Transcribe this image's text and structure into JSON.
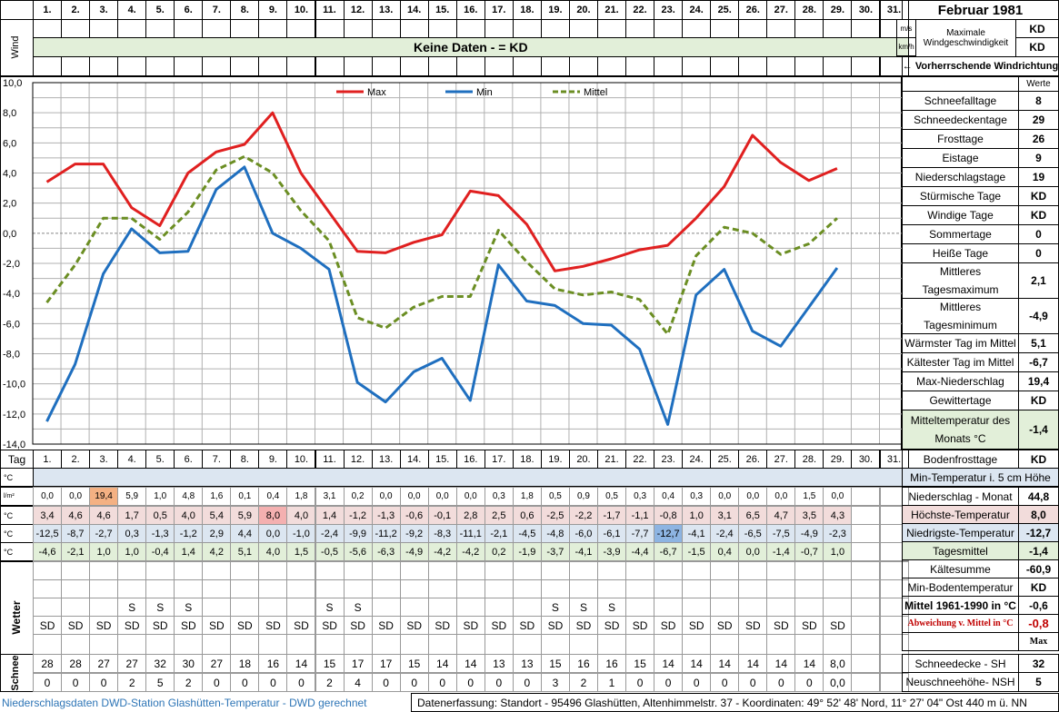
{
  "title": "Februar 1981",
  "days": [
    "1.",
    "2.",
    "3.",
    "4.",
    "5.",
    "6.",
    "7.",
    "8.",
    "9.",
    "10.",
    "11.",
    "12.",
    "13.",
    "14.",
    "15.",
    "16.",
    "17.",
    "18.",
    "19.",
    "20.",
    "21.",
    "22.",
    "23.",
    "24.",
    "25.",
    "26.",
    "27.",
    "28.",
    "29.",
    "30.",
    "31."
  ],
  "wind": {
    "vertical_label": "Wind",
    "message": "Keine Daten -  = KD",
    "units": [
      "m/s",
      "km/h"
    ],
    "max_label_1": "Maximale",
    "max_label_2": "Windgeschwindigkeit",
    "max_ms": "KD",
    "max_kmh": "KD",
    "direction_label": "← Vorherrschende Windrichtung"
  },
  "chart_data": {
    "type": "line",
    "x": [
      1,
      2,
      3,
      4,
      5,
      6,
      7,
      8,
      9,
      10,
      11,
      12,
      13,
      14,
      15,
      16,
      17,
      18,
      19,
      20,
      21,
      22,
      23,
      24,
      25,
      26,
      27,
      28,
      29
    ],
    "ylim": [
      -14,
      10
    ],
    "yticks": [
      "10,0",
      "8,0",
      "6,0",
      "4,0",
      "2,0",
      "0,0",
      "-2,0",
      "-4,0",
      "-6,0",
      "-8,0",
      "-10,0",
      "-12,0",
      "-14,0"
    ],
    "grid": true,
    "legend": "top",
    "series": [
      {
        "name": "Max",
        "color": "#e02020",
        "dashed": false,
        "values": [
          3.4,
          4.6,
          4.6,
          1.7,
          0.5,
          4.0,
          5.4,
          5.9,
          8.0,
          4.0,
          1.4,
          -1.2,
          -1.3,
          -0.6,
          -0.1,
          2.8,
          2.5,
          0.6,
          -2.5,
          -2.2,
          -1.7,
          -1.1,
          -0.8,
          1.0,
          3.1,
          6.5,
          4.7,
          3.5,
          4.3
        ]
      },
      {
        "name": "Min",
        "color": "#1f6fbf",
        "dashed": false,
        "values": [
          -12.5,
          -8.7,
          -2.7,
          0.3,
          -1.3,
          -1.2,
          2.9,
          4.4,
          0.0,
          -1.0,
          -2.4,
          -9.9,
          -11.2,
          -9.2,
          -8.3,
          -11.1,
          -2.1,
          -4.5,
          -4.8,
          -6.0,
          -6.1,
          -7.7,
          -12.7,
          -4.1,
          -2.4,
          -6.5,
          -7.5,
          -4.9,
          -2.3
        ]
      },
      {
        "name": "Mittel",
        "color": "#6b8e23",
        "dashed": true,
        "values": [
          -4.6,
          -2.1,
          1.0,
          1.0,
          -0.4,
          1.4,
          4.2,
          5.1,
          4.0,
          1.5,
          -0.5,
          -5.6,
          -6.3,
          -4.9,
          -4.2,
          -4.2,
          0.2,
          -1.9,
          -3.7,
          -4.1,
          -3.9,
          -4.4,
          -6.7,
          -1.5,
          0.4,
          0.0,
          -1.4,
          -0.7,
          1.0
        ]
      }
    ]
  },
  "table": {
    "tag_label": "Tag",
    "units": [
      "°C",
      "l/m²",
      "°C",
      "°C",
      "°C"
    ],
    "niederschlag": [
      "0,0",
      "0,0",
      "19,4",
      "5,9",
      "1,0",
      "4,8",
      "1,6",
      "0,1",
      "0,4",
      "1,8",
      "3,1",
      "0,2",
      "0,0",
      "0,0",
      "0,0",
      "0,0",
      "0,3",
      "1,8",
      "0,5",
      "0,9",
      "0,5",
      "0,3",
      "0,4",
      "0,3",
      "0,0",
      "0,0",
      "0,0",
      "1,5",
      "0,0",
      "",
      ""
    ],
    "max": [
      "3,4",
      "4,6",
      "4,6",
      "1,7",
      "0,5",
      "4,0",
      "5,4",
      "5,9",
      "8,0",
      "4,0",
      "1,4",
      "-1,2",
      "-1,3",
      "-0,6",
      "-0,1",
      "2,8",
      "2,5",
      "0,6",
      "-2,5",
      "-2,2",
      "-1,7",
      "-1,1",
      "-0,8",
      "1,0",
      "3,1",
      "6,5",
      "4,7",
      "3,5",
      "4,3",
      "",
      ""
    ],
    "min": [
      "-12,5",
      "-8,7",
      "-2,7",
      "0,3",
      "-1,3",
      "-1,2",
      "2,9",
      "4,4",
      "0,0",
      "-1,0",
      "-2,4",
      "-9,9",
      "-11,2",
      "-9,2",
      "-8,3",
      "-11,1",
      "-2,1",
      "-4,5",
      "-4,8",
      "-6,0",
      "-6,1",
      "-7,7",
      "-12,7",
      "-4,1",
      "-2,4",
      "-6,5",
      "-7,5",
      "-4,9",
      "-2,3",
      "",
      ""
    ],
    "mittel": [
      "-4,6",
      "-2,1",
      "1,0",
      "1,0",
      "-0,4",
      "1,4",
      "4,2",
      "5,1",
      "4,0",
      "1,5",
      "-0,5",
      "-5,6",
      "-6,3",
      "-4,9",
      "-4,2",
      "-4,2",
      "0,2",
      "-1,9",
      "-3,7",
      "-4,1",
      "-3,9",
      "-4,4",
      "-6,7",
      "-1,5",
      "0,4",
      "0,0",
      "-1,4",
      "-0,7",
      "1,0",
      "",
      ""
    ],
    "wetter_label": "Wetter",
    "wetter1": [
      "",
      "",
      "",
      "S",
      "S",
      "S",
      "",
      "",
      "",
      "",
      "S",
      "S",
      "",
      "",
      "",
      "",
      "",
      "",
      "S",
      "S",
      "S",
      "",
      "",
      "",
      "",
      "",
      "",
      "",
      "",
      "",
      ""
    ],
    "wetter2": [
      "SD",
      "SD",
      "SD",
      "SD",
      "SD",
      "SD",
      "SD",
      "SD",
      "SD",
      "SD",
      "SD",
      "SD",
      "SD",
      "SD",
      "SD",
      "SD",
      "SD",
      "SD",
      "SD",
      "SD",
      "SD",
      "SD",
      "SD",
      "SD",
      "SD",
      "SD",
      "SD",
      "SD",
      "SD",
      "",
      ""
    ],
    "schnee_label": "Schnee",
    "schneedecke": [
      "28",
      "28",
      "27",
      "27",
      "32",
      "30",
      "27",
      "18",
      "16",
      "14",
      "15",
      "17",
      "17",
      "15",
      "14",
      "14",
      "13",
      "13",
      "15",
      "16",
      "16",
      "15",
      "14",
      "14",
      "14",
      "14",
      "14",
      "14",
      "8,0",
      "",
      ""
    ],
    "neuschnee": [
      "0",
      "0",
      "0",
      "2",
      "5",
      "2",
      "0",
      "0",
      "0",
      "0",
      "2",
      "4",
      "0",
      "0",
      "0",
      "0",
      "0",
      "0",
      "3",
      "2",
      "1",
      "0",
      "0",
      "0",
      "0",
      "0",
      "0",
      "0",
      "0,0",
      "",
      ""
    ]
  },
  "stats": {
    "werte_label": "Werte",
    "top": [
      {
        "label": "Schneefalltage",
        "value": "8"
      },
      {
        "label": "Schneedeckentage",
        "value": "29"
      },
      {
        "label": "Frosttage",
        "value": "26"
      },
      {
        "label": "Eistage",
        "value": "9"
      },
      {
        "label": "Niederschlagstage",
        "value": "19"
      },
      {
        "label": "Stürmische Tage",
        "value": "KD"
      },
      {
        "label": "Windige Tage",
        "value": "KD"
      },
      {
        "label": "Sommertage",
        "value": "0"
      },
      {
        "label": "Heiße Tage",
        "value": "0"
      }
    ],
    "mid": [
      {
        "label": "Mittleres Tagesmaximum",
        "value": "2,1"
      },
      {
        "label": "Mittleres Tagesminimum",
        "value": "-4,9"
      }
    ],
    "lower": [
      {
        "label": "Wärmster Tag im Mittel",
        "value": "5,1"
      },
      {
        "label": "Kältester Tag im Mittel",
        "value": "-6,7"
      },
      {
        "label": "Max-Niederschlag",
        "value": "19,4"
      },
      {
        "label": "Gewittertage",
        "value": "KD"
      }
    ],
    "monthly_mean": {
      "label": "Mitteltemperatur des Monats °C",
      "value": "-1,4"
    },
    "bodenfrost": {
      "label": "Bodenfrosttage",
      "value": "KD"
    },
    "min5cm_label": "Min-Temperatur i. 5 cm Höhe",
    "niederschlag_monat": {
      "label": "Niederschlag - Monat",
      "value": "44,8"
    },
    "hoechste": {
      "label": "Höchste-Temperatur",
      "value": "8,0"
    },
    "niedrigste": {
      "label": "Niedrigste-Temperatur",
      "value": "-12,7"
    },
    "tagesmittel": {
      "label": "Tagesmittel",
      "value": "-1,4"
    },
    "kaeltesumme": {
      "label": "Kältesumme",
      "value": "-60,9"
    },
    "min_boden": {
      "label": "Min-Bodentemperatur",
      "value": "KD"
    },
    "mittel_1961": {
      "label": "Mittel 1961-1990 in °C",
      "value": "-0,6"
    },
    "abweichung": {
      "label": "Abweichung v. Mittel in °C",
      "value": "-0,8"
    },
    "max_label": "Max",
    "schneedecke": {
      "label": "Schneedecke -  SH",
      "value": "32"
    },
    "neuschnee": {
      "label": "Neuschneehöhe- NSH",
      "value": "5"
    }
  },
  "footer": {
    "left": "Niederschlagsdaten DWD-Station Glashütten-Temperatur -  DWD gerechnet",
    "right": "Datenerfassung: Standort -  95496  Glashütten, Altenhimmelstr. 37 - Koordinaten: 49° 52' 48' Nord,   11° 27' 04\" Ost   440 m ü. NN"
  },
  "colors": {
    "green_band": "#e2efd9",
    "blue_band": "#dce6f1",
    "pink_cell": "#f2dcdb",
    "orange_highlight": "#f4b183",
    "red_highlight": "#f4b0b0",
    "blue_highlight": "#8db4e2",
    "grid": "#b0b0b0"
  }
}
